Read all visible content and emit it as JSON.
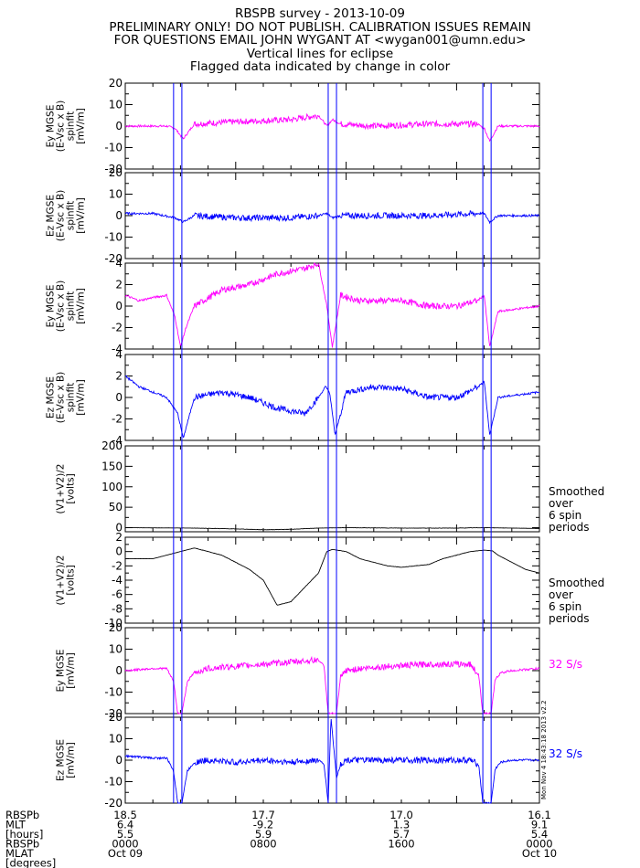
{
  "header": {
    "lines": [
      "RBSPB survey - 2013-10-09",
      "PRELIMINARY ONLY! DO NOT PUBLISH. CALIBRATION ISSUES REMAIN",
      "FOR QUESTIONS EMAIL JOHN WYGANT AT <wygan001@umn.edu>",
      "Vertical lines for eclipse",
      "Flagged data indicated by change in color"
    ]
  },
  "colors": {
    "magenta": "#ff00ff",
    "blue": "#0000ff",
    "black": "#000000",
    "eclipse": "#0000ff"
  },
  "eclipse_lines_x_hours": [
    3.5,
    4.1,
    14.7,
    15.3,
    25.9,
    26.5
  ],
  "chart_data": [
    {
      "type": "line",
      "id": "p1",
      "ylabel_lines": [
        "Ey MGSE",
        "(E-Vsc x B)",
        "spinfit",
        "[mV/m]"
      ],
      "ylim": [
        -20,
        20
      ],
      "yticks": [
        -20,
        -10,
        0,
        10,
        20
      ],
      "color": "magenta",
      "side_label": [],
      "series": [
        {
          "x": [
            0,
            3,
            3.6,
            4.2,
            5,
            8,
            12,
            14,
            14.6,
            15,
            15.6,
            18,
            22,
            25.5,
            26,
            26.4,
            27,
            30
          ],
          "y": [
            0,
            0,
            -1,
            -6,
            1,
            2,
            3,
            5,
            0,
            3,
            1,
            0,
            1,
            1,
            -1,
            -7,
            0,
            0
          ]
        }
      ]
    },
    {
      "type": "line",
      "id": "p2",
      "ylabel_lines": [
        "Ez MGSE",
        "(E-Vsc x B)",
        "spinfit",
        "[mV/m]"
      ],
      "ylim": [
        -20,
        20
      ],
      "yticks": [
        -20,
        -10,
        0,
        10,
        20
      ],
      "color": "blue",
      "side_label": [],
      "series": [
        {
          "x": [
            0,
            2,
            3.6,
            4.2,
            5,
            8,
            12,
            14,
            14.6,
            15,
            15.6,
            18,
            22,
            25.5,
            26,
            26.4,
            27,
            30
          ],
          "y": [
            1,
            1,
            -1,
            -3,
            0,
            -1,
            -1,
            0,
            1,
            -1,
            0,
            0,
            0,
            1,
            1,
            -3,
            0,
            0
          ]
        }
      ]
    },
    {
      "type": "line",
      "id": "p3",
      "ylabel_lines": [
        "Ey MGSE",
        "(E-Vsc x B)",
        "spinfit",
        "[mV/m]"
      ],
      "ylim": [
        -4,
        4
      ],
      "yticks": [
        -4,
        -2,
        0,
        2,
        4
      ],
      "color": "magenta",
      "side_label": [],
      "series": [
        {
          "x": [
            0,
            1,
            2,
            3,
            3.6,
            4.0,
            4.4,
            5,
            7,
            9,
            11,
            13,
            14,
            14.6,
            15,
            15.6,
            17,
            20,
            22,
            24,
            25.5,
            26,
            26.4,
            27,
            30
          ],
          "y": [
            1,
            0.5,
            0.8,
            1,
            -1,
            -3.8,
            -2,
            0,
            1.5,
            2,
            3,
            3.5,
            4,
            0,
            -3.8,
            1,
            0.5,
            0.5,
            0,
            0,
            0.5,
            1,
            -3.8,
            -0.5,
            0
          ]
        }
      ]
    },
    {
      "type": "line",
      "id": "p4",
      "ylabel_lines": [
        "Ez MGSE",
        "(E-Vsc x B)",
        "spinfit",
        "[mV/m]"
      ],
      "ylim": [
        -4,
        4
      ],
      "yticks": [
        -4,
        -2,
        0,
        2,
        4
      ],
      "color": "blue",
      "side_label": [],
      "series": [
        {
          "x": [
            0,
            1,
            2,
            3,
            3.8,
            4.2,
            5,
            7,
            9,
            11,
            13,
            14,
            14.5,
            14.8,
            15.2,
            16,
            18,
            20,
            22,
            24,
            25.6,
            26,
            26.4,
            27,
            30
          ],
          "y": [
            2,
            1,
            0.5,
            0,
            -1.5,
            -3.8,
            0,
            0.5,
            0,
            -1,
            -1.5,
            0,
            1,
            0.5,
            -3.5,
            0.5,
            1,
            0.8,
            0,
            0,
            1,
            1.5,
            -3.5,
            0,
            0.5
          ]
        }
      ]
    },
    {
      "type": "line",
      "id": "p5",
      "ylabel_lines": [
        "(V1+V2)/2",
        "[volts]"
      ],
      "ylim": [
        -10,
        200
      ],
      "yticks": [
        0,
        50,
        100,
        150,
        200
      ],
      "color": "black",
      "side_label": [
        "Smoothed",
        "over",
        "6 spin",
        "periods"
      ],
      "series": [
        {
          "x": [
            0,
            5,
            8,
            10,
            12,
            14,
            16,
            20,
            24,
            26,
            28,
            30
          ],
          "y": [
            0,
            -1,
            -3,
            -5,
            -4,
            -1,
            0,
            -1,
            -1,
            0,
            -1,
            -2
          ]
        }
      ]
    },
    {
      "type": "line",
      "id": "p6",
      "ylabel_lines": [
        "(V1+V2)/2",
        "[volts]"
      ],
      "ylim": [
        -10,
        2
      ],
      "yticks": [
        -10,
        -8,
        -6,
        -4,
        -2,
        0,
        2
      ],
      "color": "black",
      "side_label": [
        "Smoothed",
        "over",
        "6 spin",
        "periods"
      ],
      "series": [
        {
          "x": [
            0,
            1,
            2,
            3,
            4,
            5,
            6,
            7,
            8,
            9,
            10,
            11,
            12,
            13,
            14,
            14.6,
            15,
            16,
            17,
            18,
            19,
            20,
            21,
            22,
            23,
            24,
            25,
            26,
            26.6,
            27,
            28,
            29,
            30
          ],
          "y": [
            -1,
            -1,
            -1,
            -0.5,
            0,
            0.5,
            0,
            -0.5,
            -1.5,
            -2.5,
            -4,
            -7.5,
            -7,
            -5,
            -3,
            0,
            0.3,
            0,
            -1,
            -1.5,
            -2,
            -2.2,
            -2,
            -1.8,
            -1,
            -0.5,
            0,
            0.2,
            0.1,
            -0.5,
            -1.5,
            -2.5,
            -3
          ]
        }
      ]
    },
    {
      "type": "line",
      "id": "p7",
      "ylabel_lines": [
        "Ey MGSE",
        "[mV/m]"
      ],
      "ylim": [
        -20,
        20
      ],
      "yticks": [
        -20,
        -10,
        0,
        10,
        20
      ],
      "color": "magenta",
      "side_label": [
        "32 S/s"
      ],
      "series": [
        {
          "x": [
            0,
            2,
            3,
            3.5,
            3.8,
            4.1,
            4.5,
            5,
            6,
            8,
            10,
            12,
            14,
            14.4,
            14.7,
            15.3,
            15.6,
            16,
            17,
            19,
            22,
            25,
            25.6,
            25.9,
            26.5,
            26.8,
            27.2,
            28,
            30
          ],
          "y": [
            0,
            1,
            1,
            -5,
            -20,
            -20,
            -5,
            -1,
            1,
            2,
            3,
            4,
            5,
            2,
            -20,
            -20,
            -3,
            0,
            1,
            2,
            3,
            3,
            -2,
            -20,
            -20,
            -4,
            -1,
            0,
            1
          ]
        }
      ]
    },
    {
      "type": "line",
      "id": "p8",
      "ylabel_lines": [
        "Ez MGSE",
        "[mV/m]"
      ],
      "ylim": [
        -20,
        20
      ],
      "yticks": [
        -20,
        -10,
        0,
        10,
        20
      ],
      "color": "blue",
      "side_label": [
        "32 S/s"
      ],
      "series": [
        {
          "x": [
            0,
            2,
            3,
            3.5,
            3.8,
            4.1,
            4.5,
            5,
            6,
            8,
            10,
            12,
            14,
            14.4,
            14.7,
            14.9,
            15.3,
            15.6,
            16,
            17,
            19,
            22,
            25,
            25.6,
            25.9,
            26.5,
            26.8,
            27.2,
            28,
            30
          ],
          "y": [
            2,
            1,
            1,
            -5,
            -20,
            -20,
            -5,
            -1,
            0,
            -1,
            0,
            -1,
            0,
            -2,
            -20,
            20,
            -8,
            -2,
            0,
            0,
            0,
            0,
            0,
            -2,
            -20,
            -20,
            -4,
            -1,
            0,
            0
          ]
        }
      ]
    }
  ],
  "version_stamp": "Mon Nov 4 18:43:18 2013 v2.2",
  "footer": {
    "rows": [
      {
        "label": "RBSPb",
        "values": [
          "18.5",
          "17.7",
          "17.0",
          "16.1"
        ]
      },
      {
        "label": "MLT",
        "values": [
          "6.4",
          "-9.2",
          "1.3",
          "9.1"
        ]
      },
      {
        "label": "[hours]",
        "values": [
          "5.5",
          "5.9",
          "5.7",
          "5.4"
        ]
      },
      {
        "label": "RBSPb",
        "values": [
          "0000",
          "0800",
          "1600",
          "0000"
        ]
      },
      {
        "label": "MLAT",
        "values": [
          "Oct 09",
          "",
          "",
          "Oct 10"
        ]
      },
      {
        "label": "[degrees]",
        "values": [
          "",
          "",
          "",
          ""
        ]
      }
    ]
  }
}
